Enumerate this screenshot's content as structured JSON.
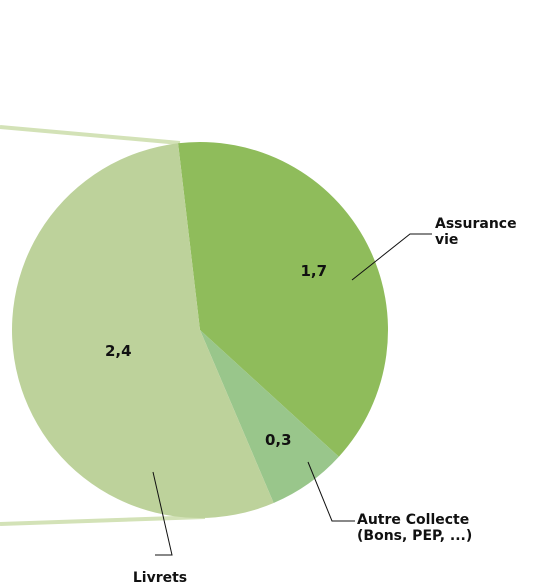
{
  "chart_data": {
    "type": "pie",
    "categories": [
      "Assurance vie",
      "Autre Collecte (Bons, PEP, ...)",
      "Livrets"
    ],
    "values": [
      1.7,
      0.3,
      2.4
    ],
    "value_labels": [
      "1,7",
      "0,3",
      "2,4"
    ],
    "colors": [
      "#8fbc5b",
      "#99c68b",
      "#bdd29b"
    ]
  }
}
